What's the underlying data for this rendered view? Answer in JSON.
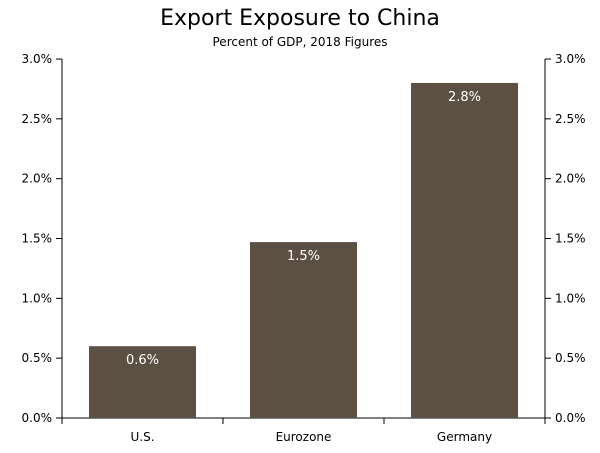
{
  "chart_data": {
    "type": "bar",
    "title": "Export Exposure to China",
    "subtitle": "Percent of GDP, 2018 Figures",
    "categories": [
      "U.S.",
      "Eurozone",
      "Germany"
    ],
    "values": [
      0.6,
      1.47,
      2.8
    ],
    "data_labels": [
      "0.6%",
      "1.5%",
      "2.8%"
    ],
    "ylim": [
      0,
      3.0
    ],
    "yticks": [
      0.0,
      0.5,
      1.0,
      1.5,
      2.0,
      2.5,
      3.0
    ],
    "ytick_labels": [
      "0.0%",
      "0.5%",
      "1.0%",
      "1.5%",
      "2.0%",
      "2.5%",
      "3.0%"
    ],
    "xlabel": "",
    "ylabel": "",
    "bar_color": "#5c5044",
    "label_color": "#ffffff",
    "grid": false,
    "legend": false,
    "axes": "left-and-right"
  }
}
